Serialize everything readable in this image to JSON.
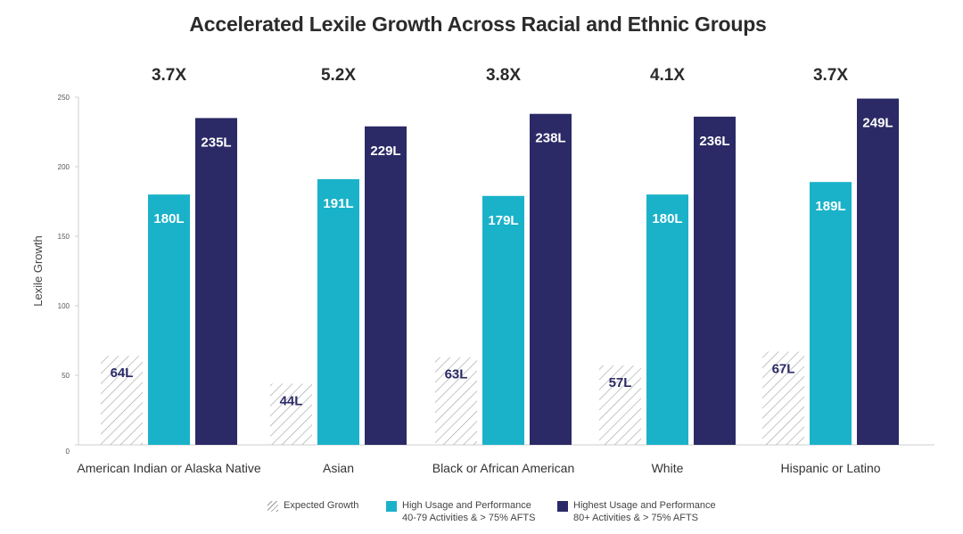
{
  "chart_data": {
    "type": "bar",
    "title": "Accelerated Lexile Growth Across Racial and Ethnic Groups",
    "ylabel": "Lexile Growth",
    "xlabel": "",
    "ylim": [
      0,
      250
    ],
    "yticks": [
      0,
      50,
      100,
      150,
      200,
      250
    ],
    "categories": [
      "American Indian or Alaska Native",
      "Asian",
      "Black or African American",
      "White",
      "Hispanic or Latino"
    ],
    "multipliers": [
      "3.7X",
      "5.2X",
      "3.8X",
      "4.1X",
      "3.7X"
    ],
    "series": [
      {
        "name": "Expected Growth",
        "values": [
          64,
          44,
          63,
          57,
          67
        ],
        "labels": [
          "64L",
          "44L",
          "63L",
          "57L",
          "67L"
        ],
        "color": "#9a9a9a",
        "pattern": "hatch"
      },
      {
        "name": "High Usage and Performance",
        "subtitle": "40-79 Activities & > 75% AFTS",
        "values": [
          180,
          191,
          179,
          180,
          189
        ],
        "labels": [
          "180L",
          "191L",
          "179L",
          "180L",
          "189L"
        ],
        "color": "#1ab2c9"
      },
      {
        "name": "Highest Usage and Performance",
        "subtitle": "80+ Activities & > 75% AFTS",
        "values": [
          235,
          229,
          238,
          236,
          249
        ],
        "labels": [
          "235L",
          "229L",
          "238L",
          "236L",
          "249L"
        ],
        "color": "#2b2a66"
      }
    ],
    "legend": "bottom"
  }
}
